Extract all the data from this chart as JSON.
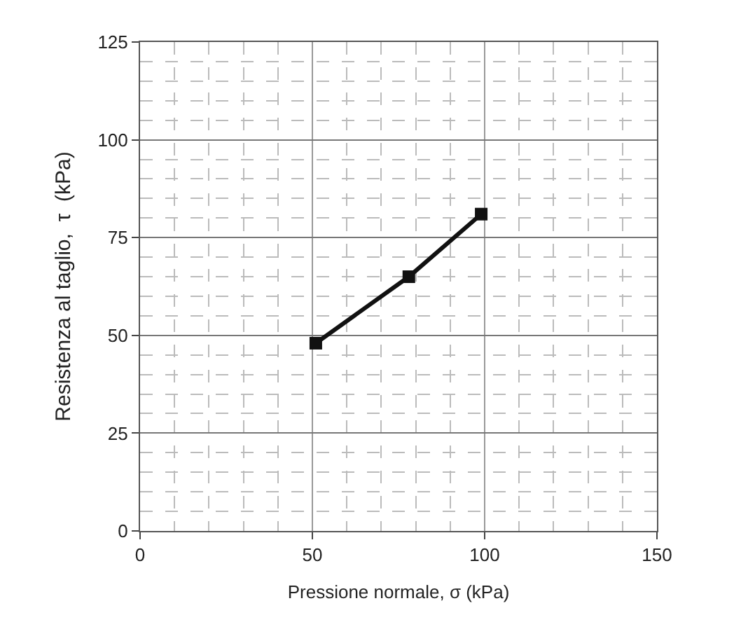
{
  "chart_data": {
    "type": "line",
    "xlabel": "Pressione normale, σ (kPa)",
    "ylabel": "Resistenza al taglio,  τ  (kPa)",
    "x": [
      51,
      78,
      99
    ],
    "series": [
      {
        "color": "#111111",
        "values": [
          48,
          65,
          81
        ]
      }
    ],
    "xlim": [
      0,
      150
    ],
    "xticks": [
      0,
      50,
      100,
      150
    ],
    "ylim": [
      0,
      125
    ],
    "yticks": [
      0,
      25,
      50,
      75,
      100,
      125
    ],
    "grid": true,
    "marker": "square",
    "line_style": "solid",
    "legend": false
  }
}
